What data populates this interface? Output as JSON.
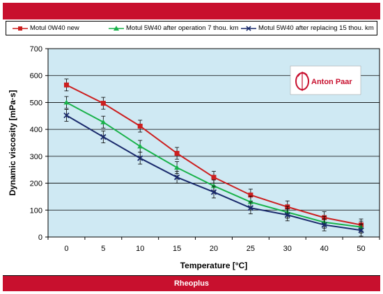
{
  "footer": {
    "label": "Rheoplus"
  },
  "logo": {
    "text": "Anton Paar"
  },
  "colors": {
    "brand": "#c8102e",
    "plot_bg": "#cfe9f3",
    "series1": "#cc1f1f",
    "series2": "#19b24a",
    "series3": "#1a2a6c"
  },
  "chart_data": {
    "type": "line",
    "title": "",
    "xlabel": "Temperature [°C]",
    "ylabel": "Dynamic viscosity [mPa·s]",
    "ylim": [
      0,
      700
    ],
    "yticks": [
      0,
      100,
      200,
      300,
      400,
      500,
      600,
      700
    ],
    "categories": [
      "0",
      "5",
      "10",
      "15",
      "20",
      "25",
      "30",
      "40",
      "50"
    ],
    "grid": true,
    "legend": "top",
    "series": [
      {
        "name": "Motul 0W40 new",
        "marker": "square",
        "values": [
          565,
          497,
          412,
          311,
          222,
          156,
          112,
          72,
          45
        ],
        "errors": [
          22,
          22,
          22,
          22,
          22,
          22,
          22,
          22,
          22
        ]
      },
      {
        "name": "Motul 5W40 after operation  7 thou. km",
        "marker": "triangle",
        "values": [
          500,
          427,
          337,
          258,
          190,
          130,
          92,
          55,
          37
        ],
        "errors": [
          22,
          22,
          22,
          22,
          22,
          22,
          22,
          22,
          22
        ]
      },
      {
        "name": "Motul 5W40 after replacing 15 thou. km",
        "marker": "cross",
        "values": [
          452,
          372,
          293,
          222,
          167,
          108,
          82,
          45,
          25
        ],
        "errors": [
          22,
          22,
          22,
          22,
          22,
          22,
          22,
          22,
          22
        ]
      }
    ]
  }
}
